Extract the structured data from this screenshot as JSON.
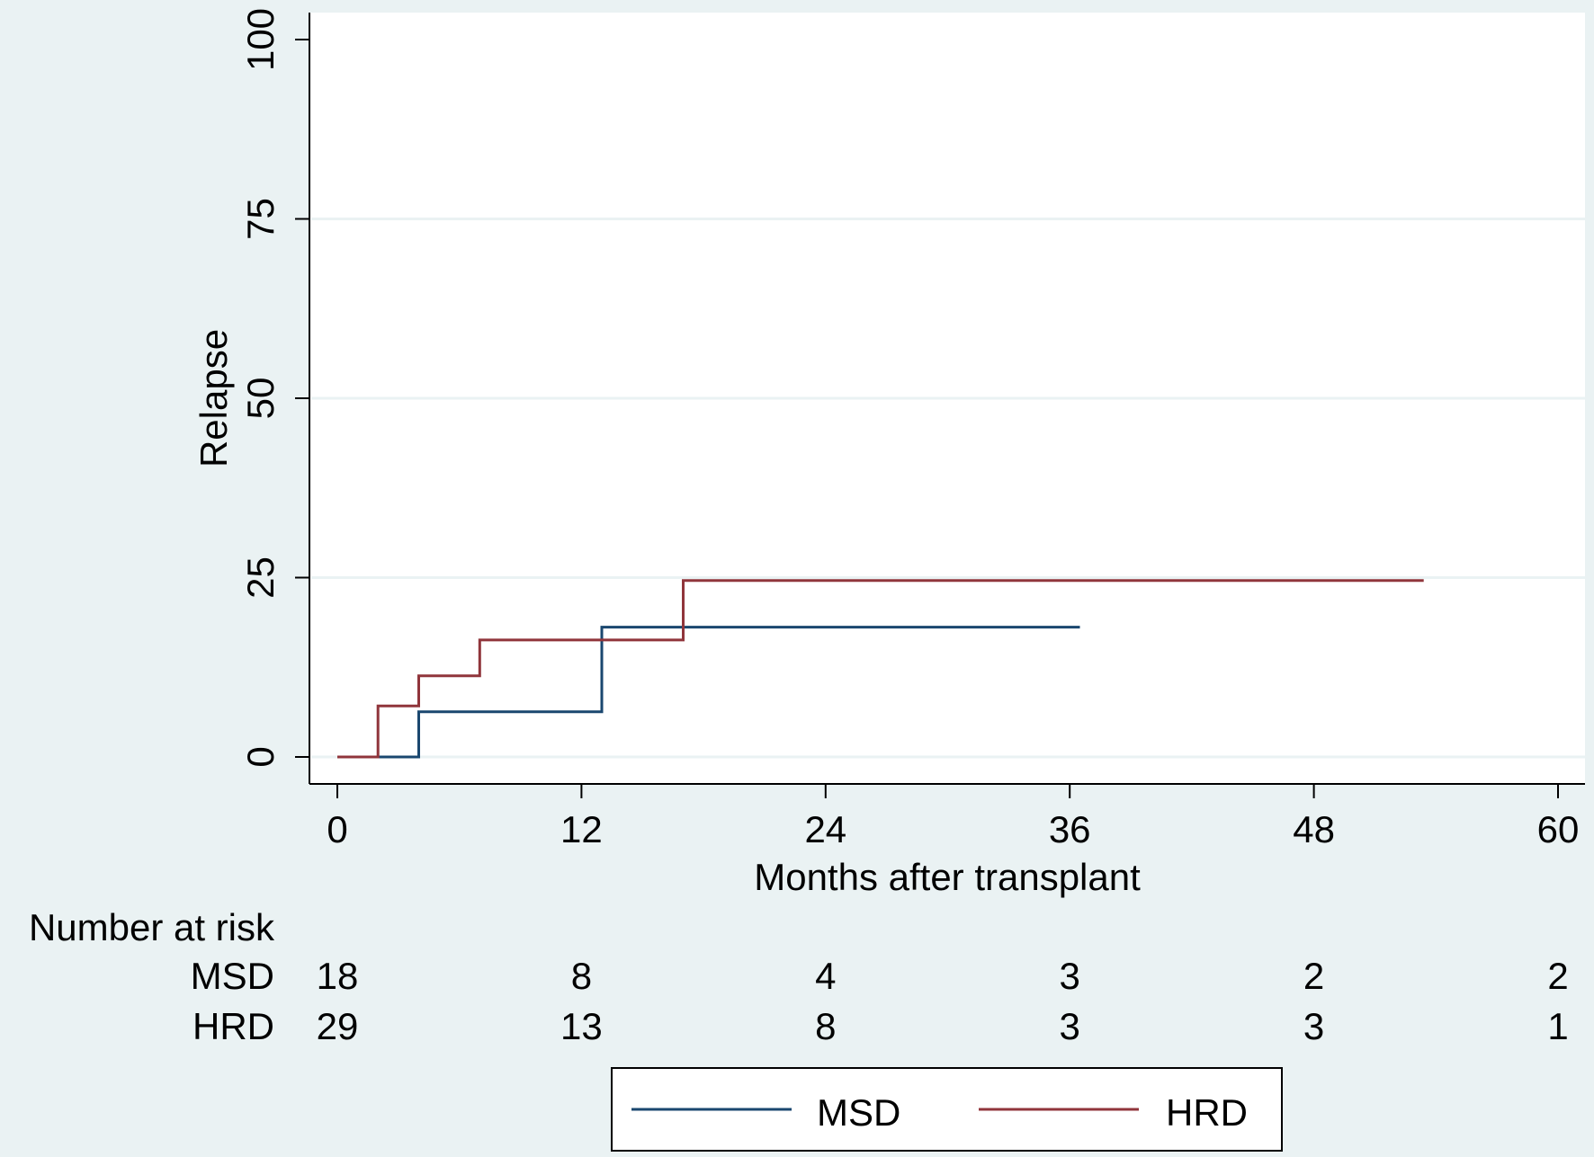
{
  "chart_data": {
    "type": "line",
    "title": "",
    "xlabel": "Months after transplant",
    "ylabel": "Relapse",
    "xlim": [
      0,
      60
    ],
    "ylim": [
      0,
      100
    ],
    "xticks": [
      0,
      12,
      24,
      36,
      48,
      60
    ],
    "yticks": [
      0,
      25,
      50,
      75,
      100
    ],
    "grid": true,
    "colors": {
      "background": "#eaf2f3",
      "plot_background": "#ffffff",
      "gridline": "#eaf2f3"
    },
    "series": [
      {
        "name": "MSD",
        "color": "#1a476f",
        "step": true,
        "points": [
          [
            0,
            0
          ],
          [
            4,
            0
          ],
          [
            4,
            6.3
          ],
          [
            13,
            6.3
          ],
          [
            13,
            18.1
          ],
          [
            36.5,
            18.1
          ]
        ]
      },
      {
        "name": "HRD",
        "color": "#90353b",
        "step": true,
        "points": [
          [
            0,
            0
          ],
          [
            2,
            0
          ],
          [
            2,
            7.1
          ],
          [
            4,
            7.1
          ],
          [
            4,
            11.3
          ],
          [
            7,
            11.3
          ],
          [
            7,
            16.3
          ],
          [
            17,
            16.3
          ],
          [
            17,
            24.6
          ],
          [
            53.4,
            24.6
          ]
        ]
      }
    ],
    "risk_table": {
      "title": "Number at risk",
      "rows": [
        {
          "label": "MSD",
          "values": [
            "18",
            "8",
            "4",
            "3",
            "2",
            "2"
          ]
        },
        {
          "label": "HRD",
          "values": [
            "29",
            "13",
            "8",
            "3",
            "3",
            "1"
          ]
        }
      ]
    },
    "legend": {
      "placement": "bottom",
      "entries": [
        {
          "label": "MSD",
          "color": "#1a476f"
        },
        {
          "label": "HRD",
          "color": "#90353b"
        }
      ]
    }
  }
}
